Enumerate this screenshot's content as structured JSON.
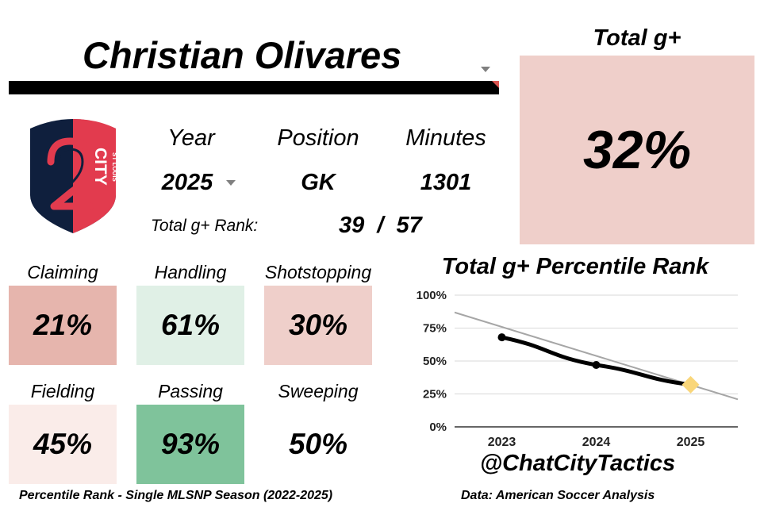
{
  "player": {
    "name": "Christian Olivares"
  },
  "team_logo": {
    "wordmark_top": "ST LOUIS",
    "wordmark_main": "CITY",
    "numeral": "2"
  },
  "info": {
    "year_header": "Year",
    "year_value": "2025",
    "position_header": "Position",
    "position_value": "GK",
    "minutes_header": "Minutes",
    "minutes_value": "1301",
    "rank_label": "Total g+ Rank:",
    "rank_value": "39  /  57"
  },
  "total": {
    "title": "Total g+",
    "value": "32%",
    "color": "#efcfca"
  },
  "metrics": [
    {
      "label": "Claiming",
      "value": "21%",
      "color": "#e6b5ad"
    },
    {
      "label": "Handling",
      "value": "61%",
      "color": "#e0f0e6"
    },
    {
      "label": "Shotstopping",
      "value": "30%",
      "color": "#efcfca"
    },
    {
      "label": "Fielding",
      "value": "45%",
      "color": "#faece9"
    },
    {
      "label": "Passing",
      "value": "93%",
      "color": "#7fc39b"
    },
    {
      "label": "Sweeping",
      "value": "50%",
      "color": "#ffffff"
    }
  ],
  "chart_data": {
    "type": "line",
    "title": "Total g+ Percentile Rank",
    "x": [
      "2023",
      "2024",
      "2025"
    ],
    "series": [
      {
        "values": [
          68,
          47,
          32
        ],
        "color": "#000000"
      }
    ],
    "trendline": {
      "values": [
        75.9,
        53.9,
        31.9
      ],
      "extend": 0.5,
      "color": "#a6a6a6"
    },
    "highlight": {
      "index": 2,
      "marker": "diamond",
      "color": "#f9d67a"
    },
    "ylim": [
      0,
      100
    ],
    "yticks": [
      "0%",
      "25%",
      "50%",
      "75%",
      "100%"
    ],
    "grid": true
  },
  "handle": "@ChatCityTactics",
  "footer": {
    "left": "Percentile Rank - Single MLSNP Season (2022-2025)",
    "right": "Data: American Soccer Analysis"
  }
}
